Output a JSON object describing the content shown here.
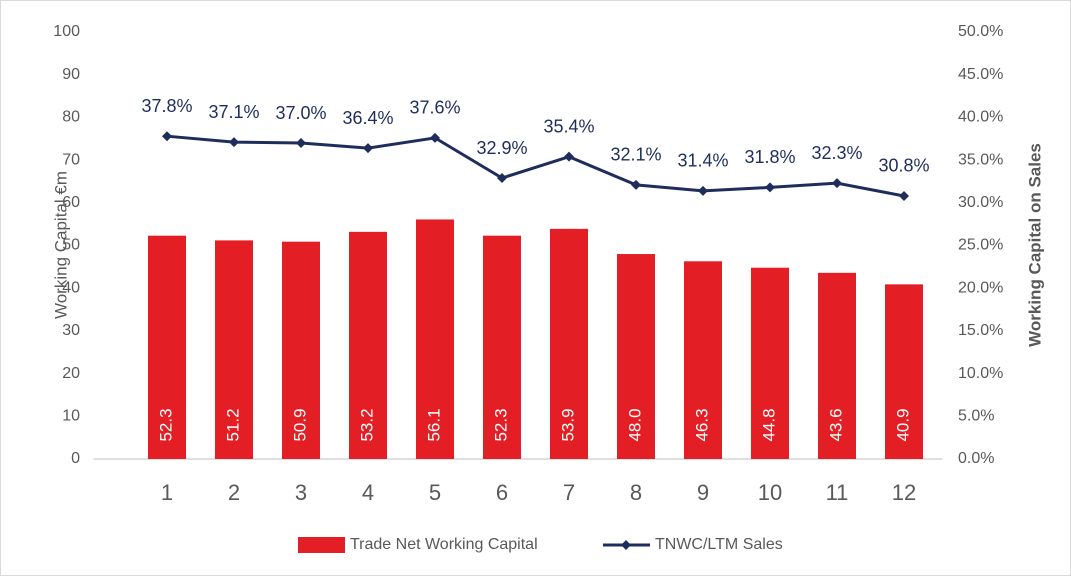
{
  "chart_data": {
    "type": "bar",
    "categories": [
      "1",
      "2",
      "3",
      "4",
      "5",
      "6",
      "7",
      "8",
      "9",
      "10",
      "11",
      "12"
    ],
    "series": [
      {
        "name": "Trade Net Working Capital",
        "color": "#e31e24",
        "type": "bar",
        "values": [
          52.3,
          51.2,
          50.9,
          53.2,
          56.1,
          52.3,
          53.9,
          48.0,
          46.3,
          44.8,
          43.6,
          40.9
        ],
        "value_labels": [
          "52.3",
          "51.2",
          "50.9",
          "53.2",
          "56.1",
          "52.3",
          "53.9",
          "48.0",
          "46.3",
          "44.8",
          "43.6",
          "40.9"
        ]
      },
      {
        "name": "TNWC/LTM Sales",
        "color": "#1f2d5c",
        "type": "line",
        "axis": "y2",
        "values": [
          37.8,
          37.1,
          37.0,
          36.4,
          37.6,
          32.9,
          35.4,
          32.1,
          31.4,
          31.8,
          32.3,
          30.8
        ],
        "value_labels": [
          "37.8%",
          "37.1%",
          "37.0%",
          "36.4%",
          "37.6%",
          "32.9%",
          "35.4%",
          "32.1%",
          "31.4%",
          "31.8%",
          "32.3%",
          "30.8%"
        ]
      }
    ],
    "ylabel": "Working Capital €m",
    "y2label": "Working Capital on Sales",
    "ylim": [
      0,
      100
    ],
    "yticks": [
      0,
      10,
      20,
      30,
      40,
      50,
      60,
      70,
      80,
      90,
      100
    ],
    "y2lim": [
      0,
      50
    ],
    "y2ticks": [
      {
        "value": 0,
        "label": "0.0%"
      },
      {
        "value": 5,
        "label": "5.0%"
      },
      {
        "value": 10,
        "label": "10.0%"
      },
      {
        "value": 15,
        "label": "15.0%"
      },
      {
        "value": 20,
        "label": "20.0%"
      },
      {
        "value": 25,
        "label": "25.0%"
      },
      {
        "value": 30,
        "label": "30.0%"
      },
      {
        "value": 35,
        "label": "35.0%"
      },
      {
        "value": 40,
        "label": "40.0%"
      },
      {
        "value": 45,
        "label": "45.0%"
      },
      {
        "value": 50,
        "label": "50.0%"
      }
    ],
    "legend": "bottom",
    "grid": false
  }
}
